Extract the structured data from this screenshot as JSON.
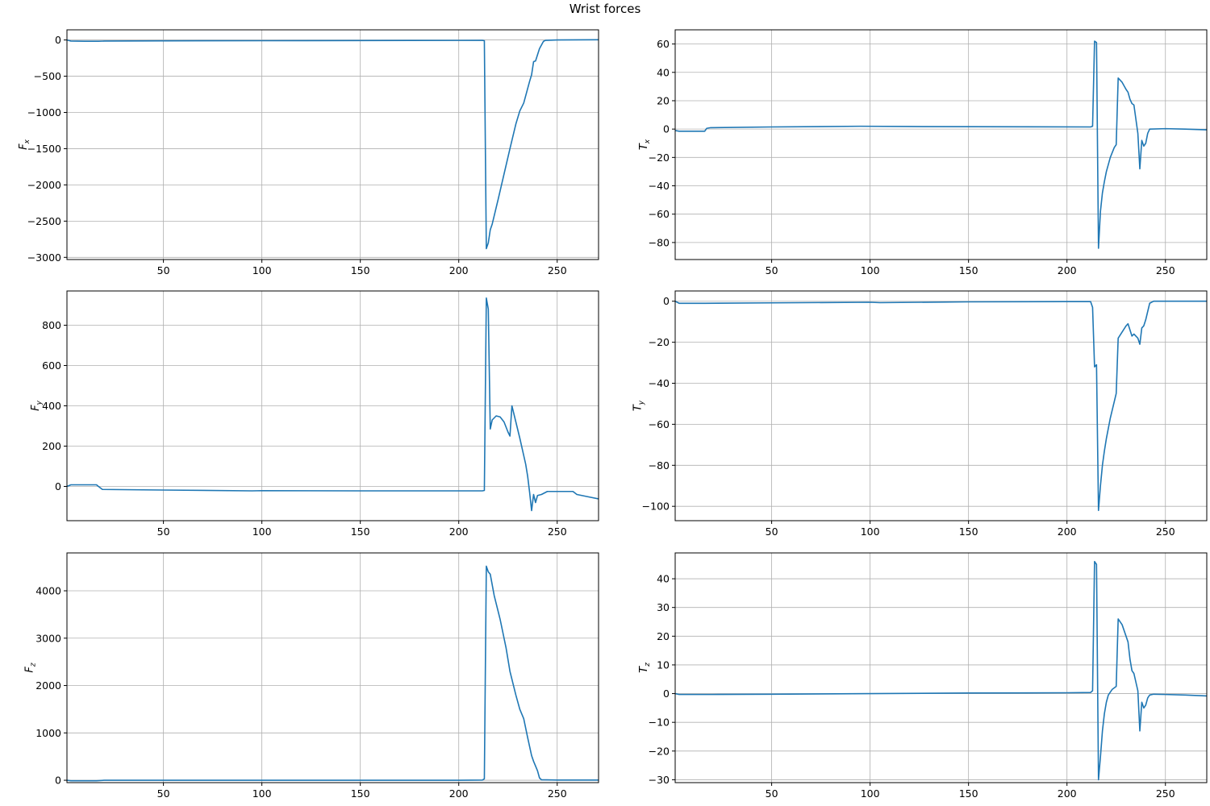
{
  "figure_title": "Wrist forces",
  "colors": {
    "line": "#1f77b4",
    "grid": "#b0b0b0",
    "frame": "#000000"
  },
  "chart_data": [
    {
      "type": "line",
      "title": "",
      "ylabel_main": "F",
      "ylabel_sub": "x",
      "xlim": [
        1,
        271
      ],
      "ylim": [
        -3030,
        140
      ],
      "xticks": [
        50,
        100,
        150,
        200,
        250
      ],
      "yticks": [
        0,
        -500,
        -1000,
        -1500,
        -2000,
        -2500,
        -3000
      ],
      "grid": true,
      "points": [
        [
          1,
          0
        ],
        [
          3,
          -15
        ],
        [
          10,
          -18
        ],
        [
          17,
          -18
        ],
        [
          20,
          -15
        ],
        [
          50,
          -12
        ],
        [
          100,
          -10
        ],
        [
          150,
          -8
        ],
        [
          200,
          -6
        ],
        [
          212,
          -5
        ],
        [
          213,
          -10
        ],
        [
          214,
          -2880
        ],
        [
          215,
          -2800
        ],
        [
          216,
          -2620
        ],
        [
          217,
          -2540
        ],
        [
          220,
          -2200
        ],
        [
          223,
          -1850
        ],
        [
          226,
          -1500
        ],
        [
          229,
          -1160
        ],
        [
          231,
          -980
        ],
        [
          233,
          -870
        ],
        [
          236,
          -570
        ],
        [
          237,
          -480
        ],
        [
          238,
          -300
        ],
        [
          239,
          -290
        ],
        [
          241,
          -120
        ],
        [
          243,
          -20
        ],
        [
          244,
          -5
        ],
        [
          250,
          0
        ],
        [
          260,
          2
        ],
        [
          271,
          3
        ]
      ]
    },
    {
      "type": "line",
      "title": "",
      "ylabel_main": "T",
      "ylabel_sub": "x",
      "xlim": [
        1,
        271
      ],
      "ylim": [
        -92,
        70
      ],
      "xticks": [
        50,
        100,
        150,
        200,
        250
      ],
      "yticks": [
        60,
        40,
        20,
        0,
        -20,
        -40,
        -60,
        -80
      ],
      "grid": true,
      "points": [
        [
          1,
          -1
        ],
        [
          3,
          -1.5
        ],
        [
          16,
          -1.5
        ],
        [
          17,
          0.5
        ],
        [
          19,
          1
        ],
        [
          50,
          1.5
        ],
        [
          95,
          2
        ],
        [
          120,
          1.8
        ],
        [
          212,
          1.5
        ],
        [
          213,
          2
        ],
        [
          214,
          62
        ],
        [
          215,
          61
        ],
        [
          216,
          -84
        ],
        [
          217,
          -58
        ],
        [
          218,
          -45
        ],
        [
          219,
          -37
        ],
        [
          220,
          -30
        ],
        [
          222,
          -20
        ],
        [
          224,
          -13
        ],
        [
          225,
          -11
        ],
        [
          226,
          36
        ],
        [
          228,
          33
        ],
        [
          230,
          28
        ],
        [
          231,
          26
        ],
        [
          232,
          21
        ],
        [
          233,
          18
        ],
        [
          234,
          17
        ],
        [
          236,
          -3
        ],
        [
          237,
          -28
        ],
        [
          238,
          -8
        ],
        [
          239,
          -12
        ],
        [
          240,
          -10
        ],
        [
          241,
          -3
        ],
        [
          242,
          0
        ],
        [
          250,
          0.3
        ],
        [
          260,
          0
        ],
        [
          271,
          -0.5
        ]
      ]
    },
    {
      "type": "line",
      "title": "",
      "ylabel_main": "F",
      "ylabel_sub": "y",
      "xlim": [
        1,
        271
      ],
      "ylim": [
        -170,
        970
      ],
      "xticks": [
        50,
        100,
        150,
        200,
        250
      ],
      "yticks": [
        800,
        600,
        400,
        200,
        0
      ],
      "grid": true,
      "points": [
        [
          1,
          0
        ],
        [
          3,
          8
        ],
        [
          16,
          8
        ],
        [
          17,
          0
        ],
        [
          19,
          -15
        ],
        [
          50,
          -18
        ],
        [
          95,
          -22
        ],
        [
          100,
          -21
        ],
        [
          150,
          -22
        ],
        [
          200,
          -22
        ],
        [
          212,
          -22
        ],
        [
          213,
          -20
        ],
        [
          214,
          935
        ],
        [
          215,
          880
        ],
        [
          216,
          285
        ],
        [
          217,
          330
        ],
        [
          219,
          350
        ],
        [
          221,
          345
        ],
        [
          223,
          320
        ],
        [
          225,
          270
        ],
        [
          226,
          250
        ],
        [
          227,
          400
        ],
        [
          229,
          320
        ],
        [
          231,
          240
        ],
        [
          234,
          110
        ],
        [
          235,
          50
        ],
        [
          236,
          -30
        ],
        [
          237,
          -120
        ],
        [
          238,
          -40
        ],
        [
          239,
          -80
        ],
        [
          240,
          -45
        ],
        [
          242,
          -40
        ],
        [
          245,
          -25
        ],
        [
          258,
          -25
        ],
        [
          260,
          -40
        ],
        [
          266,
          -52
        ],
        [
          271,
          -62
        ]
      ]
    },
    {
      "type": "line",
      "title": "",
      "ylabel_main": "T",
      "ylabel_sub": "y",
      "xlim": [
        1,
        271
      ],
      "ylim": [
        -107,
        5
      ],
      "xticks": [
        50,
        100,
        150,
        200,
        250
      ],
      "yticks": [
        0,
        -20,
        -40,
        -60,
        -80,
        -100
      ],
      "grid": true,
      "points": [
        [
          1,
          0
        ],
        [
          3,
          -1
        ],
        [
          16,
          -1
        ],
        [
          50,
          -0.8
        ],
        [
          100,
          -0.5
        ],
        [
          105,
          -0.7
        ],
        [
          150,
          -0.3
        ],
        [
          200,
          -0.2
        ],
        [
          212,
          -0.2
        ],
        [
          213,
          -3
        ],
        [
          214,
          -32
        ],
        [
          215,
          -31
        ],
        [
          216,
          -102
        ],
        [
          217,
          -90
        ],
        [
          218,
          -80
        ],
        [
          219,
          -73
        ],
        [
          220,
          -67
        ],
        [
          222,
          -57
        ],
        [
          224,
          -49
        ],
        [
          225,
          -45
        ],
        [
          226,
          -18
        ],
        [
          228,
          -15
        ],
        [
          230,
          -12
        ],
        [
          231,
          -11
        ],
        [
          233,
          -17
        ],
        [
          234,
          -16
        ],
        [
          236,
          -18
        ],
        [
          237,
          -21
        ],
        [
          238,
          -13
        ],
        [
          239,
          -12
        ],
        [
          240,
          -9
        ],
        [
          241,
          -5
        ],
        [
          242,
          -1
        ],
        [
          244,
          0
        ],
        [
          250,
          0
        ],
        [
          260,
          0
        ],
        [
          271,
          0
        ]
      ]
    },
    {
      "type": "line",
      "title": "",
      "ylabel_main": "F",
      "ylabel_sub": "z",
      "xlim": [
        1,
        271
      ],
      "ylim": [
        -50,
        4800
      ],
      "xticks": [
        50,
        100,
        150,
        200,
        250
      ],
      "yticks": [
        4000,
        3000,
        2000,
        1000,
        0
      ],
      "grid": true,
      "points": [
        [
          1,
          0
        ],
        [
          3,
          -10
        ],
        [
          16,
          -10
        ],
        [
          20,
          0
        ],
        [
          50,
          0
        ],
        [
          100,
          0
        ],
        [
          150,
          0
        ],
        [
          200,
          0
        ],
        [
          212,
          5
        ],
        [
          213,
          30
        ],
        [
          214,
          4520
        ],
        [
          215,
          4400
        ],
        [
          216,
          4350
        ],
        [
          218,
          3900
        ],
        [
          221,
          3400
        ],
        [
          224,
          2800
        ],
        [
          226,
          2300
        ],
        [
          229,
          1800
        ],
        [
          231,
          1500
        ],
        [
          233,
          1300
        ],
        [
          235,
          900
        ],
        [
          237,
          520
        ],
        [
          238,
          400
        ],
        [
          240,
          200
        ],
        [
          241,
          50
        ],
        [
          242,
          10
        ],
        [
          250,
          5
        ],
        [
          260,
          5
        ],
        [
          271,
          5
        ]
      ]
    },
    {
      "type": "line",
      "title": "",
      "ylabel_main": "T",
      "ylabel_sub": "z",
      "xlim": [
        1,
        271
      ],
      "ylim": [
        -31,
        49
      ],
      "xticks": [
        50,
        100,
        150,
        200,
        250
      ],
      "yticks": [
        40,
        30,
        20,
        10,
        0,
        -10,
        -20,
        -30
      ],
      "grid": true,
      "points": [
        [
          1,
          0
        ],
        [
          3,
          -0.3
        ],
        [
          20,
          -0.3
        ],
        [
          50,
          -0.2
        ],
        [
          100,
          0
        ],
        [
          150,
          0.2
        ],
        [
          200,
          0.3
        ],
        [
          212,
          0.4
        ],
        [
          213,
          1
        ],
        [
          214,
          46
        ],
        [
          215,
          45
        ],
        [
          216,
          -30
        ],
        [
          217,
          -22
        ],
        [
          218,
          -13
        ],
        [
          219,
          -7
        ],
        [
          220,
          -3
        ],
        [
          221,
          -0.5
        ],
        [
          223,
          1.5
        ],
        [
          225,
          2.5
        ],
        [
          226,
          26
        ],
        [
          228,
          24
        ],
        [
          230,
          20
        ],
        [
          231,
          18
        ],
        [
          232,
          12
        ],
        [
          233,
          8
        ],
        [
          234,
          7
        ],
        [
          236,
          1
        ],
        [
          237,
          -13
        ],
        [
          238,
          -3
        ],
        [
          239,
          -5
        ],
        [
          240,
          -4
        ],
        [
          241,
          -1.5
        ],
        [
          242,
          -0.5
        ],
        [
          244,
          -0.2
        ],
        [
          250,
          -0.3
        ],
        [
          260,
          -0.5
        ],
        [
          271,
          -0.8
        ]
      ]
    }
  ]
}
